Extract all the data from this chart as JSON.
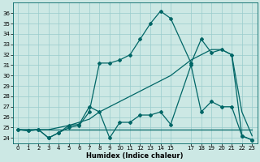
{
  "xlabel": "Humidex (Indice chaleur)",
  "background_color": "#cce8e4",
  "grid_color": "#99cccc",
  "line_color": "#006666",
  "ylim": [
    23.5,
    37.0
  ],
  "yticks": [
    24,
    25,
    26,
    27,
    28,
    29,
    30,
    31,
    32,
    33,
    34,
    35,
    36
  ],
  "x_ticks": [
    0,
    1,
    2,
    3,
    4,
    5,
    6,
    7,
    8,
    9,
    10,
    11,
    12,
    13,
    14,
    15,
    17,
    18,
    19,
    20,
    21,
    22,
    23
  ],
  "x_labels": [
    "0",
    "1",
    "2",
    "3",
    "4",
    "5",
    "6",
    "7",
    "8",
    "9",
    "10",
    "11",
    "12",
    "13",
    "14",
    "15",
    "17",
    "18",
    "19",
    "20",
    "21",
    "22",
    "23"
  ],
  "xlim": [
    -0.5,
    23.5
  ],
  "series1_x": [
    0,
    1,
    2,
    3,
    4,
    5,
    6,
    7,
    8,
    9,
    10,
    11,
    12,
    13,
    14,
    15,
    17,
    18,
    19,
    20,
    21,
    22,
    23
  ],
  "series1_y": [
    24.8,
    24.8,
    24.8,
    24.8,
    24.8,
    24.8,
    24.8,
    24.8,
    24.8,
    24.8,
    24.8,
    24.8,
    24.8,
    24.8,
    24.8,
    24.8,
    24.8,
    24.8,
    24.8,
    24.8,
    24.8,
    24.8,
    24.8
  ],
  "series2_x": [
    0,
    1,
    2,
    3,
    4,
    5,
    6,
    7,
    8,
    9,
    10,
    11,
    12,
    13,
    14,
    15,
    17,
    18,
    19,
    20,
    21,
    22,
    23
  ],
  "series2_y": [
    24.8,
    24.7,
    24.8,
    24.0,
    24.5,
    25.2,
    25.3,
    27.0,
    26.5,
    24.0,
    25.5,
    25.5,
    26.2,
    26.2,
    26.5,
    25.3,
    31.0,
    26.5,
    27.5,
    27.0,
    27.0,
    24.2,
    23.8
  ],
  "series3_x": [
    0,
    1,
    2,
    3,
    4,
    5,
    6,
    7,
    8,
    9,
    10,
    11,
    12,
    13,
    14,
    15,
    17,
    18,
    19,
    20,
    21,
    22,
    23
  ],
  "series3_y": [
    24.8,
    24.7,
    24.8,
    24.0,
    24.5,
    25.0,
    25.2,
    26.5,
    31.2,
    31.2,
    31.5,
    32.0,
    33.5,
    35.0,
    36.2,
    35.5,
    31.2,
    33.5,
    32.2,
    32.5,
    32.0,
    24.2,
    23.8
  ],
  "series4_x": [
    0,
    1,
    2,
    3,
    4,
    5,
    6,
    7,
    8,
    9,
    10,
    11,
    12,
    13,
    14,
    15,
    17,
    18,
    19,
    20,
    21,
    22,
    23
  ],
  "series4_y": [
    24.8,
    24.8,
    24.8,
    24.8,
    25.0,
    25.2,
    25.5,
    25.8,
    26.5,
    27.0,
    27.5,
    28.0,
    28.5,
    29.0,
    29.5,
    30.0,
    31.5,
    32.0,
    32.5,
    32.5,
    32.0,
    26.5,
    24.2
  ],
  "xlabel_fontsize": 6.0,
  "tick_fontsize": 5.0,
  "linewidth": 0.9,
  "markersize": 2.0
}
